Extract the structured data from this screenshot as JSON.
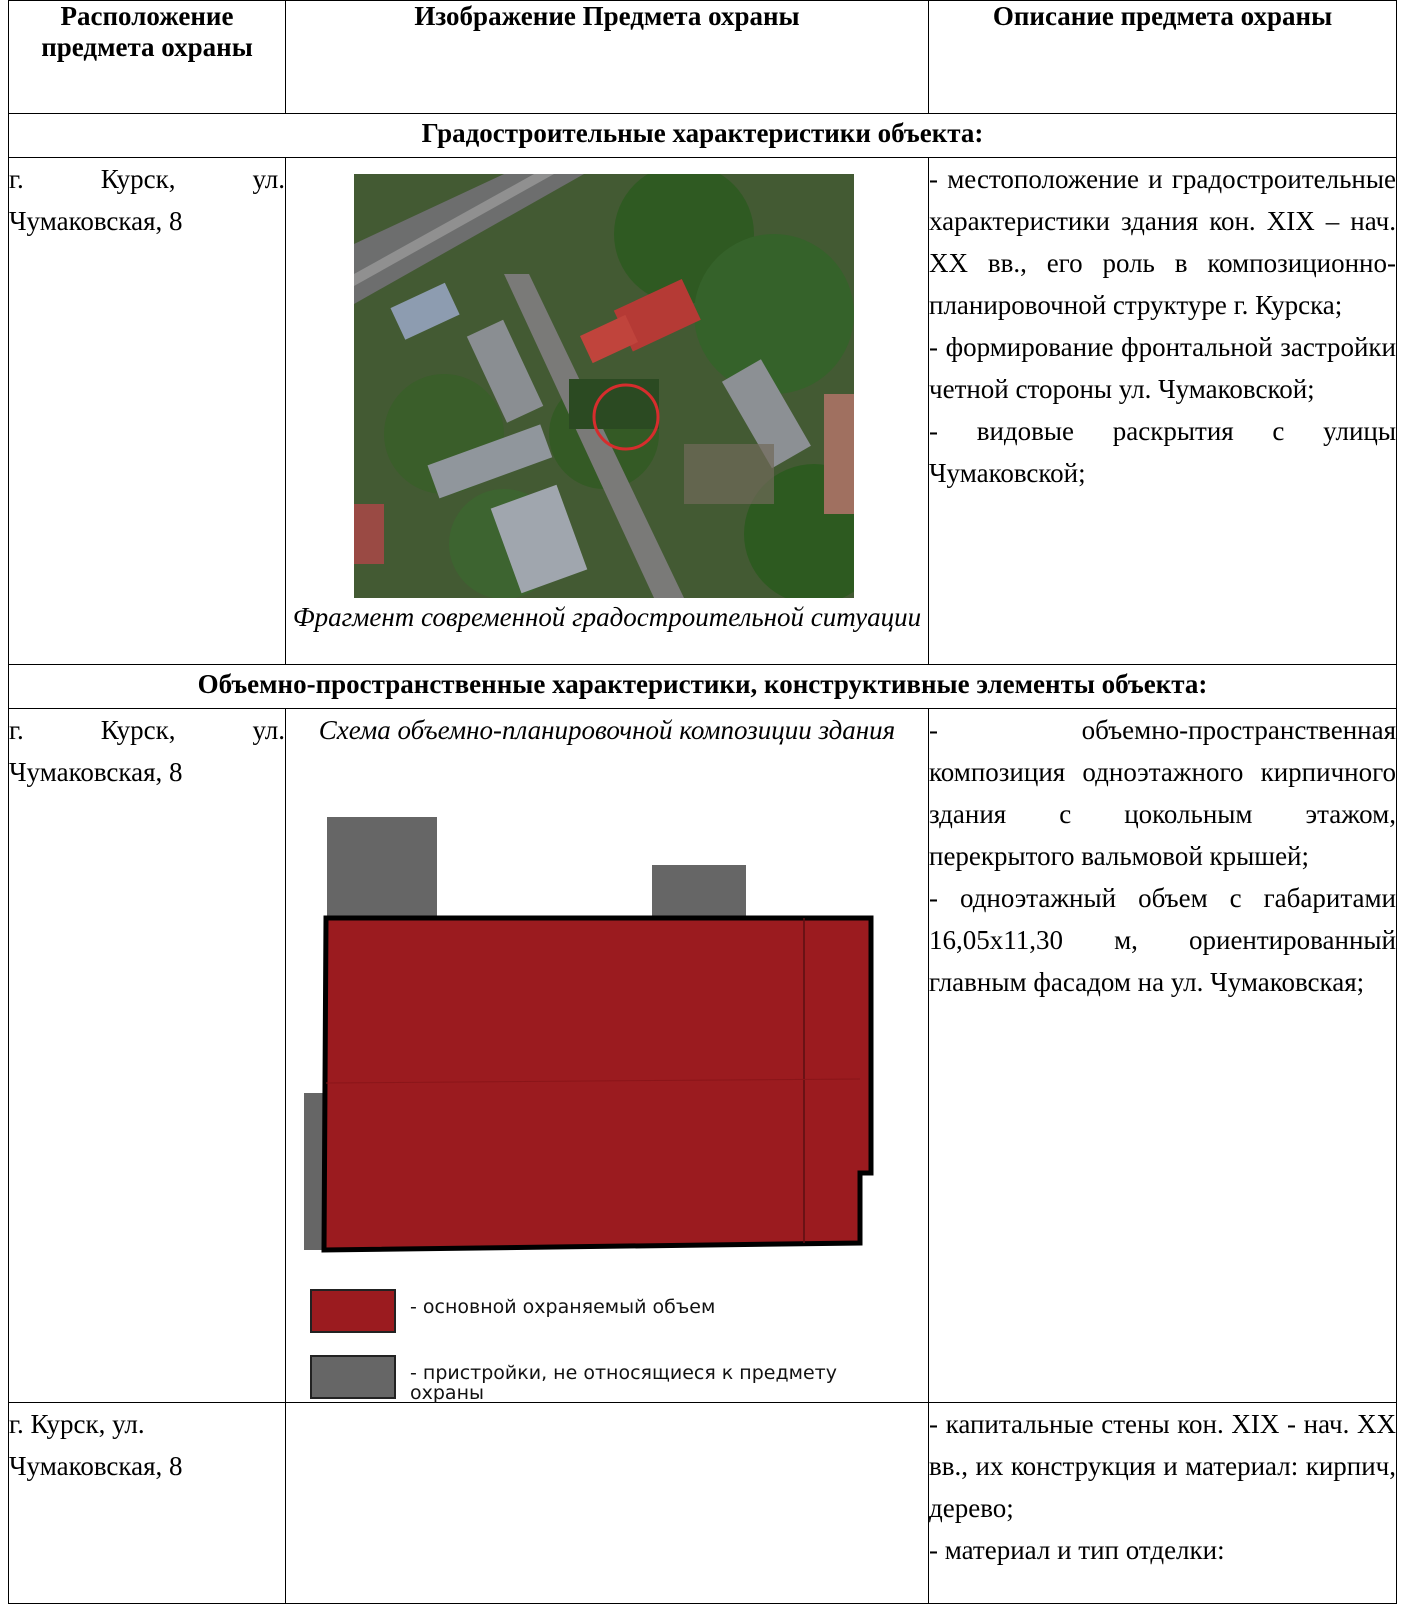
{
  "headers": {
    "location": "Расположение предмета охраны",
    "image": "Изображение Предмета охраны",
    "description": "Описание предмета охраны"
  },
  "sections": {
    "urban": "Градостроительные характеристики объекта:",
    "volume": "Объемно-пространственные характеристики, конструктивные элементы объекта:"
  },
  "rows": [
    {
      "location": "г. Курск, ул. Чумаковская, 8",
      "caption": "Фрагмент современной градостроительной ситуации",
      "description": [
        "- местоположение и градостроительные характеристики здания кон. XIX – нач. XX вв., его роль в композиционно-планировочной структуре г. Курска;",
        "- формирование фронтальной застройки четной стороны ул. Чумаковской;",
        "- видовые раскрытия с улицы Чумаковской;"
      ]
    },
    {
      "location": "г. Курск, ул. Чумаковская, 8",
      "caption": "Схема объемно-планировочной композиции здания",
      "description": [
        "- объемно-пространственная композиция одноэтажного кирпичного здания с цокольным этажом, перекрытого вальмовой крышей;",
        "- одноэтажный объем с габаритами 16,05х11,30 м, ориентированный главным фасадом на ул. Чумаковская;"
      ],
      "legend": [
        {
          "label": "- основной охраняемый объем",
          "color": "#9b1b1f"
        },
        {
          "label": "- пристройки, не относящиеся к предмету охраны",
          "color": "#666666"
        }
      ]
    },
    {
      "location": "г. Курск, ул. Чумаковская, 8",
      "description": [
        "- капитальные стены кон. XIX - нач. XX вв., их конструкция и материал: кирпич, дерево;",
        "- материал и тип отделки:"
      ]
    }
  ]
}
